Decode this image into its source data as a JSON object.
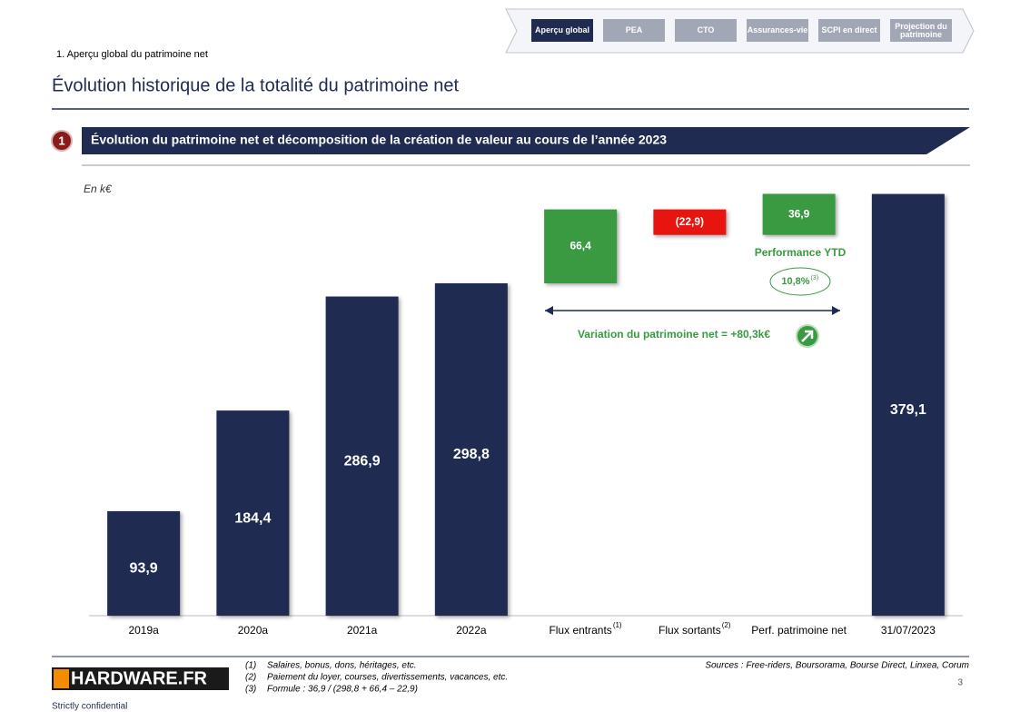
{
  "header": {
    "nav": [
      "Aperçu global",
      "PEA",
      "CTO",
      "Assurances-vie",
      "SCPI en direct",
      "Projection du patrimoine"
    ],
    "breadcrumb": "1. Aperçu global du patrimoine net",
    "title": "Évolution historique de la totalité du patrimoine net"
  },
  "section": {
    "number": "1",
    "title": "Évolution du patrimoine net et décomposition de la création de valeur au cours de l’année 2023"
  },
  "chart_data": {
    "type": "waterfall",
    "unit_label": "En k€",
    "categories": [
      "2019a",
      "2020a",
      "2021a",
      "2022a",
      "Flux entrants",
      "Flux sortants",
      "Perf. patrimoine net",
      "31/07/2023"
    ],
    "category_superscripts": [
      null,
      null,
      null,
      null,
      "(1)",
      "(2)",
      null,
      null
    ],
    "kinds": [
      "total",
      "total",
      "total",
      "total",
      "delta",
      "delta",
      "delta",
      "total"
    ],
    "values": [
      93.9,
      184.4,
      286.9,
      298.8,
      66.4,
      -22.9,
      36.9,
      379.1
    ],
    "value_labels": [
      "93,9",
      "184,4",
      "286,9",
      "298,8",
      "66,4",
      "(22,9)",
      "36,9",
      "379,1"
    ],
    "colors": {
      "total": "#1f2b50",
      "increase": "#3a9a41",
      "decrease": "#e8140f"
    },
    "ylim": [
      0,
      400
    ],
    "annotations": {
      "performance": "Performance YTD",
      "performance_rate": "10,8%",
      "performance_ref": "(3)",
      "variation": "Variation du patrimoine net = +80,3k€"
    }
  },
  "footer": {
    "logo": "HARDWARE.FR",
    "notes": [
      {
        "marker": "(1)",
        "text": "Salaires, bonus, dons, héritages, etc."
      },
      {
        "marker": "(2)",
        "text": "Paiement du loyer, courses, divertissements, vacances, etc."
      },
      {
        "marker": "(3)",
        "text": "Formule : 36,9 / (298,8 + 66,4 – 22,9)"
      }
    ],
    "sources": "Sources : Free-riders, Boursorama, Bourse Direct, Linxea, Corum",
    "page": "3",
    "confidential": "Strictly confidential"
  }
}
